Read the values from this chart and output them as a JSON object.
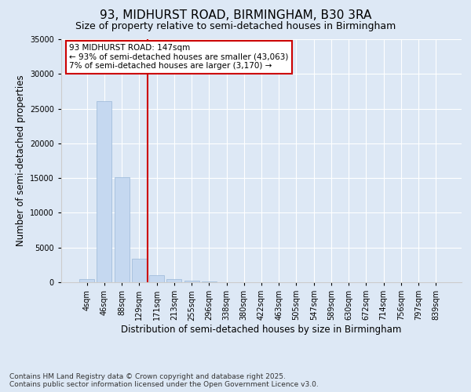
{
  "title_line1": "93, MIDHURST ROAD, BIRMINGHAM, B30 3RA",
  "title_line2": "Size of property relative to semi-detached houses in Birmingham",
  "xlabel": "Distribution of semi-detached houses by size in Birmingham",
  "ylabel": "Number of semi-detached properties",
  "categories": [
    "4sqm",
    "46sqm",
    "88sqm",
    "129sqm",
    "171sqm",
    "213sqm",
    "255sqm",
    "296sqm",
    "338sqm",
    "380sqm",
    "422sqm",
    "463sqm",
    "505sqm",
    "547sqm",
    "589sqm",
    "630sqm",
    "672sqm",
    "714sqm",
    "756sqm",
    "797sqm",
    "839sqm"
  ],
  "bar_heights": [
    400,
    26100,
    15100,
    3400,
    1050,
    480,
    180,
    60,
    20,
    10,
    5,
    3,
    2,
    1,
    1,
    0,
    0,
    0,
    0,
    0,
    0
  ],
  "bar_color": "#c5d8f0",
  "bar_edge_color": "#9ab8d8",
  "background_color": "#dde8f5",
  "grid_color": "#ffffff",
  "vline_color": "#cc0000",
  "annotation_title": "93 MIDHURST ROAD: 147sqm",
  "annotation_line2": "← 93% of semi-detached houses are smaller (43,063)",
  "annotation_line3": "7% of semi-detached houses are larger (3,170) →",
  "annotation_box_color": "#cc0000",
  "ylim": [
    0,
    35000
  ],
  "yticks": [
    0,
    5000,
    10000,
    15000,
    20000,
    25000,
    30000,
    35000
  ],
  "footer_line1": "Contains HM Land Registry data © Crown copyright and database right 2025.",
  "footer_line2": "Contains public sector information licensed under the Open Government Licence v3.0.",
  "title_fontsize": 11,
  "subtitle_fontsize": 9,
  "axis_label_fontsize": 8.5,
  "tick_fontsize": 7,
  "footer_fontsize": 6.5,
  "annotation_fontsize": 7.5
}
